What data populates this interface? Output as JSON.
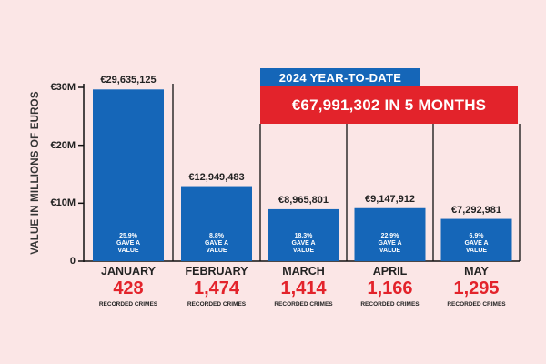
{
  "chart_data": {
    "type": "bar",
    "ylabel": "VALUE IN MILLIONS OF EUROS",
    "ylim": [
      0,
      30000000
    ],
    "y_ticks": [
      {
        "value": 0,
        "label": "0"
      },
      {
        "value": 10000000,
        "label": "€10M"
      },
      {
        "value": 20000000,
        "label": "€20M"
      },
      {
        "value": 30000000,
        "label": "€30M"
      }
    ],
    "categories": [
      "JANUARY",
      "FEBRUARY",
      "MARCH",
      "APRIL",
      "MAY"
    ],
    "values": [
      29635125,
      12949483,
      8965801,
      9147912,
      7292981
    ],
    "value_labels": [
      "€29,635,125",
      "€12,949,483",
      "€8,965,801",
      "€9,147,912",
      "€7,292,981"
    ],
    "gave_value_pct": [
      "25.9%",
      "8.8%",
      "18.3%",
      "22.9%",
      "6.9%"
    ],
    "gave_value_text": [
      "GAVE A",
      "VALUE"
    ],
    "recorded_crimes": [
      "428",
      "1,474",
      "1,414",
      "1,166",
      "1,295"
    ],
    "recorded_crimes_label": "RECORDED CRIMES",
    "annotation": {
      "label": "2024 YEAR-TO-DATE",
      "total": "€67,991,302 IN 5 MONTHS"
    },
    "colors": {
      "bar": "#1566b8",
      "accent_red": "#e3232b",
      "background": "#fbe6e6",
      "axis": "#111111"
    },
    "grid": false
  }
}
